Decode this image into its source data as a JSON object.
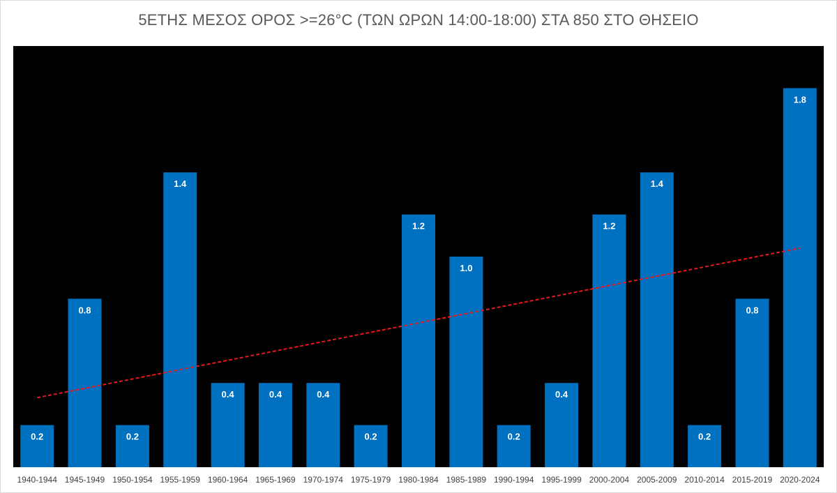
{
  "chart_data": {
    "type": "bar",
    "title": "5ΕΤΗΣ ΜΕΣΟΣ ΟΡΟΣ >=26°C (ΤΩΝ ΩΡΩΝ 14:00-18:00) ΣΤΑ 850 ΣΤΟ ΘΗΣΕΙΟ",
    "xlabel": "",
    "ylabel": "",
    "categories": [
      "1940-1944",
      "1945-1949",
      "1950-1954",
      "1955-1959",
      "1960-1964",
      "1965-1969",
      "1970-1974",
      "1975-1979",
      "1980-1984",
      "1985-1989",
      "1990-1994",
      "1995-1999",
      "2000-2004",
      "2005-2009",
      "2010-2014",
      "2015-2019",
      "2020-2024"
    ],
    "values": [
      0.2,
      0.8,
      0.2,
      1.4,
      0.4,
      0.4,
      0.4,
      0.2,
      1.2,
      1.0,
      0.2,
      0.4,
      1.2,
      1.4,
      0.2,
      0.8,
      1.8
    ],
    "data_labels": [
      "0.2",
      "0.8",
      "0.2",
      "1.4",
      "0.4",
      "0.4",
      "0.4",
      "0.2",
      "1.2",
      "1.0",
      "0.2",
      "0.4",
      "1.2",
      "1.4",
      "0.2",
      "0.8",
      "1.8"
    ],
    "ylim": [
      0,
      2.0
    ],
    "grid": false,
    "legend": "none",
    "trendline": {
      "type": "linear",
      "style": "dashed",
      "color": "#e8191b",
      "start": 0.33,
      "end": 1.04
    },
    "colors": {
      "bar": "#0070c0",
      "plot_background": "#000000",
      "data_label": "#ffffff",
      "title": "#595959",
      "tick_label": "#404040"
    }
  }
}
